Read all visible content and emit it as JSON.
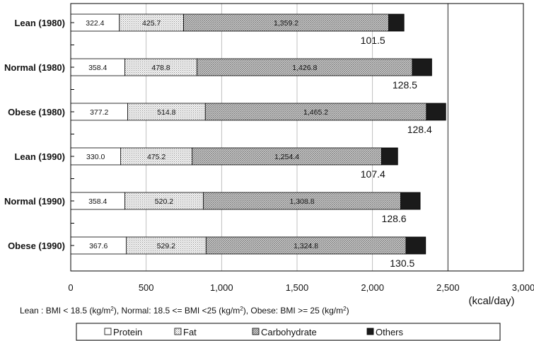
{
  "chart_data": {
    "type": "bar",
    "orientation": "horizontal",
    "stacked": true,
    "categories": [
      "Lean (1980)",
      "Normal (1980)",
      "Obese (1980)",
      "Lean (1990)",
      "Normal (1990)",
      "Obese (1990)"
    ],
    "series": [
      {
        "name": "Protein",
        "color": "#ffffff",
        "pattern": "none",
        "values": [
          322.4,
          358.4,
          377.2,
          330.0,
          358.4,
          367.6
        ],
        "labels": [
          "322.4",
          "358.4",
          "377.2",
          "330.0",
          "358.4",
          "367.6"
        ]
      },
      {
        "name": "Fat",
        "color": "#f2f2f2",
        "pattern": "dots",
        "values": [
          425.7,
          478.8,
          514.8,
          475.2,
          520.2,
          529.2
        ],
        "labels": [
          "425.7",
          "478.8",
          "514.8",
          "475.2",
          "520.2",
          "529.2"
        ]
      },
      {
        "name": "Carbohydrate",
        "color": "#bdbdbd",
        "pattern": "hatch",
        "values": [
          1359.2,
          1426.8,
          1465.2,
          1254.4,
          1308.8,
          1324.8
        ],
        "labels": [
          "1,359.2",
          "1,426.8",
          "1,465.2",
          "1,254.4",
          "1,308.8",
          "1,324.8"
        ]
      },
      {
        "name": "Others",
        "color": "#1a1a1a",
        "pattern": "none",
        "values": [
          101.5,
          128.5,
          128.4,
          107.4,
          128.6,
          130.5
        ],
        "labels": [
          "101.5",
          "128.5",
          "128.4",
          "107.4",
          "128.6",
          "130.5"
        ]
      }
    ],
    "xlim": [
      0,
      3000
    ],
    "xticks": [
      0,
      500,
      1000,
      1500,
      2000,
      2500,
      3000
    ],
    "xtick_labels": [
      "0",
      "500",
      "1,000",
      "1,500",
      "2,000",
      "2,500",
      "3,000"
    ],
    "xunit": "(kcal/day)",
    "grid": "vertical",
    "legend_position": "bottom",
    "footnote": "Lean : BMI < 18.5 (kg/m²), Normal: 18.5 <= BMI <25 (kg/m²), Obese: BMI >= 25 (kg/m²)"
  },
  "colors": {
    "axis": "#000000",
    "grid": "#b0b0b0"
  }
}
